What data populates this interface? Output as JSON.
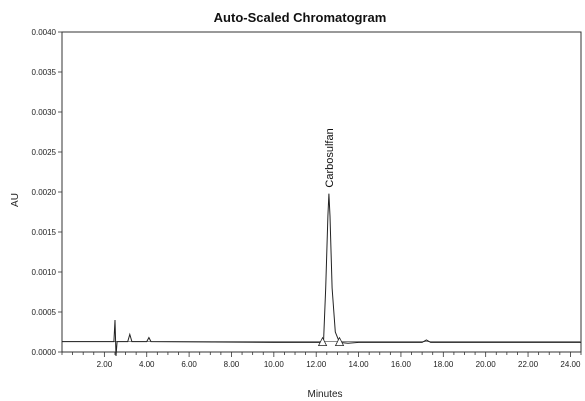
{
  "chart_data": {
    "type": "line",
    "title": "Auto-Scaled Chromatogram",
    "xlabel": "Minutes",
    "ylabel": "AU",
    "xlim": [
      0,
      24.5
    ],
    "ylim": [
      0,
      0.004
    ],
    "x_ticks": [
      "2.00",
      "4.00",
      "6.00",
      "8.00",
      "10.00",
      "12.00",
      "14.00",
      "16.00",
      "18.00",
      "20.00",
      "22.00",
      "24.00"
    ],
    "x_tick_values": [
      2,
      4,
      6,
      8,
      10,
      12,
      14,
      16,
      18,
      20,
      22,
      24
    ],
    "y_ticks": [
      "0.0000",
      "0.0005",
      "0.0010",
      "0.0015",
      "0.0020",
      "0.0025",
      "0.0030",
      "0.0035",
      "0.0040"
    ],
    "y_tick_values": [
      0,
      0.0005,
      0.001,
      0.0015,
      0.002,
      0.0025,
      0.003,
      0.0035,
      0.004
    ],
    "grid": false,
    "baseline_au": 0.00013,
    "peaks": [
      {
        "label": "Carbosulfan",
        "retention_time": 12.6,
        "height_au": 0.00198,
        "start_time": 12.3,
        "end_time": 13.1
      }
    ],
    "series": [
      {
        "x": [
          0,
          2.45,
          2.5,
          2.55,
          2.6,
          2.7,
          3.1,
          3.2,
          3.3,
          4.0,
          4.1,
          4.2,
          10.0,
          12.2,
          12.35,
          12.45,
          12.55,
          12.6,
          12.65,
          12.75,
          12.9,
          13.1,
          13.5,
          14.0,
          17.0,
          17.2,
          17.4,
          24.5
        ],
        "y": [
          0.00013,
          0.00013,
          0.0004,
          -5e-05,
          0.00013,
          0.00013,
          0.00013,
          0.00022,
          0.00013,
          0.00013,
          0.00018,
          0.00013,
          0.00012,
          0.00012,
          0.00015,
          0.0008,
          0.0017,
          0.00198,
          0.0017,
          0.0008,
          0.00025,
          0.00012,
          0.00011,
          0.00012,
          0.00012,
          0.00015,
          0.00012,
          0.00012
        ]
      }
    ]
  }
}
